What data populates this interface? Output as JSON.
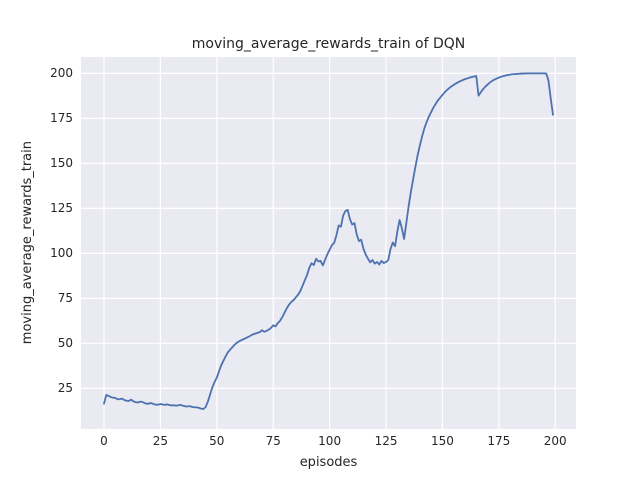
{
  "chart": {
    "title": "moving_average_rewards_train of DQN",
    "xlabel": "episodes",
    "ylabel": "moving_average_rewards_train"
  },
  "chart_data": {
    "type": "line",
    "title": "moving_average_rewards_train of DQN",
    "xlabel": "episodes",
    "ylabel": "moving_average_rewards_train",
    "x_ticks": [
      0,
      25,
      50,
      75,
      100,
      125,
      150,
      175,
      200
    ],
    "y_ticks": [
      25,
      50,
      75,
      100,
      125,
      150,
      175,
      200
    ],
    "xlim": [
      -10.2,
      209.2
    ],
    "ylim": [
      2.4,
      209.1
    ],
    "grid": true,
    "legend_position": "none",
    "colors": {
      "line": "#4c72b0",
      "axes_background": "#eaeaf2",
      "grid": "#ffffff",
      "figure_background": "#ffffff",
      "text": "#262626"
    },
    "series": [
      {
        "name": "DQN",
        "x_start": 0,
        "x_step": 1,
        "values": [
          16.5,
          21.3,
          20.8,
          20.2,
          19.8,
          19.7,
          18.9,
          19.0,
          19.3,
          18.5,
          18.1,
          18.0,
          18.7,
          17.8,
          17.3,
          17.1,
          17.6,
          17.4,
          16.8,
          16.4,
          16.6,
          16.8,
          16.2,
          15.9,
          15.9,
          16.3,
          16.0,
          15.8,
          16.1,
          15.7,
          15.5,
          15.6,
          15.3,
          15.6,
          15.8,
          15.3,
          15.0,
          14.9,
          15.1,
          14.7,
          14.5,
          14.4,
          14.2,
          13.7,
          13.5,
          14.5,
          17.5,
          21.5,
          25.5,
          28.5,
          31.0,
          34.5,
          38.0,
          40.5,
          43.0,
          45.2,
          46.6,
          48.0,
          49.4,
          50.4,
          51.2,
          51.8,
          52.4,
          53.0,
          53.6,
          54.3,
          55.0,
          55.4,
          55.8,
          56.2,
          57.3,
          56.4,
          56.9,
          57.6,
          58.6,
          60.0,
          59.4,
          61.2,
          62.5,
          64.5,
          67.0,
          69.5,
          71.5,
          73.0,
          74.0,
          75.5,
          77.0,
          79.0,
          82.0,
          85.0,
          88.0,
          92.0,
          94.5,
          93.5,
          97.0,
          95.5,
          95.8,
          93.3,
          96.5,
          99.5,
          102.0,
          104.5,
          105.8,
          110.0,
          115.5,
          114.8,
          121.0,
          123.5,
          124.2,
          119.0,
          116.0,
          116.8,
          110.5,
          106.8,
          107.6,
          102.5,
          99.3,
          97.0,
          95.0,
          96.3,
          94.3,
          95.2,
          93.8,
          95.8,
          94.6,
          95.2,
          96.3,
          102.5,
          106.0,
          104.0,
          112.0,
          118.5,
          114.0,
          108.0,
          117.0,
          126.0,
          134.0,
          141.0,
          148.0,
          154.5,
          160.0,
          165.0,
          169.5,
          173.0,
          176.0,
          178.5,
          181.0,
          183.0,
          185.0,
          186.5,
          188.0,
          189.5,
          190.7,
          191.8,
          192.8,
          193.6,
          194.4,
          195.1,
          195.7,
          196.3,
          196.8,
          197.2,
          197.6,
          198.0,
          198.3,
          198.5,
          187.6,
          189.5,
          191.2,
          192.6,
          193.8,
          194.9,
          195.8,
          196.5,
          197.1,
          197.7,
          198.1,
          198.5,
          198.8,
          199.1,
          199.3,
          199.5,
          199.6,
          199.7,
          199.8,
          199.9,
          199.9,
          200.0,
          200.0,
          200.0,
          200.0,
          200.0,
          200.0,
          200.0,
          200.0,
          200.0,
          199.9,
          196.0,
          186.0,
          177.0
        ]
      }
    ]
  }
}
